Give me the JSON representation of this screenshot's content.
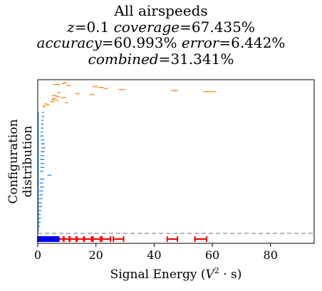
{
  "chart_data": {
    "type": "scatter",
    "title": "All airspeeds",
    "subtitle_lines": [
      [
        {
          "t": "z",
          "i": true
        },
        {
          "t": "=0.1 ",
          "i": false
        },
        {
          "t": "coverage",
          "i": true
        },
        {
          "t": "=67.435%",
          "i": false
        }
      ],
      [
        {
          "t": "accuracy",
          "i": true
        },
        {
          "t": "=60.993% ",
          "i": false
        },
        {
          "t": "error",
          "i": true
        },
        {
          "t": "=6.442%",
          "i": false
        }
      ],
      [
        {
          "t": "combined",
          "i": true
        },
        {
          "t": "=31.341%",
          "i": false
        }
      ]
    ],
    "xlabel_main": "Signal Energy (",
    "xlabel_sym": "V",
    "xlabel_sup": "2",
    "xlabel_tail": " · s)",
    "ylabel_lines": [
      "Configuration",
      "distribution"
    ],
    "xlim": [
      0,
      95
    ],
    "xticks": [
      0,
      20,
      40,
      60,
      80
    ],
    "xtick_labels": [
      "0",
      "20",
      "40",
      "60",
      "80"
    ],
    "grid": false,
    "threshold_line": {
      "style": "dashed",
      "color": "#a0a0a0"
    },
    "colors": {
      "high": "#ff9933",
      "low": "#4499ee",
      "marker": "#0000ff",
      "interval": "#ff0000"
    },
    "distribution_orange": [
      [
        9.0,
        1
      ],
      [
        8.5,
        0.6
      ],
      [
        5.5,
        2
      ],
      [
        10,
        1.2
      ],
      [
        19,
        1.5
      ],
      [
        21,
        1.6
      ],
      [
        23,
        1.0
      ],
      [
        28,
        2
      ],
      [
        46,
        2
      ],
      [
        57,
        4
      ],
      [
        7.0,
        0.7
      ],
      [
        13,
        1.2
      ],
      [
        18,
        1.4
      ],
      [
        5.0,
        1.4
      ],
      [
        6.5,
        0.9
      ],
      [
        8.0,
        1.5
      ],
      [
        5.2,
        1.0
      ],
      [
        4.8,
        0.8
      ],
      [
        6.0,
        1.0
      ],
      [
        4.5,
        1.0
      ],
      [
        9.5,
        0.8
      ],
      [
        2.5,
        0.5
      ],
      [
        3.0,
        0.8
      ],
      [
        2.0,
        0.4
      ],
      [
        1.8,
        0.6
      ]
    ],
    "distribution_blue": [
      [
        1.6,
        0.4
      ],
      [
        1.5,
        0.6
      ],
      [
        1.4,
        0.5
      ],
      [
        1.3,
        0.6
      ],
      [
        1.2,
        0.7
      ],
      [
        1.1,
        0.5
      ],
      [
        1.0,
        0.8
      ],
      [
        1.2,
        0.9
      ],
      [
        1.3,
        1.0
      ],
      [
        1.4,
        1.1
      ],
      [
        1.1,
        1.2
      ],
      [
        1.0,
        1.0
      ],
      [
        0.9,
        1.3
      ],
      [
        1.1,
        1.0
      ],
      [
        1.0,
        1.1
      ],
      [
        0.9,
        0.9
      ],
      [
        3.5,
        1.0
      ],
      [
        0.9,
        1.2
      ],
      [
        0.8,
        0.9
      ],
      [
        0.9,
        1.1
      ],
      [
        0.7,
        1.0
      ],
      [
        0.8,
        0.8
      ],
      [
        0.6,
        0.9
      ],
      [
        0.5,
        0.7
      ],
      [
        0.6,
        0.8
      ],
      [
        0.5,
        0.6
      ],
      [
        0.4,
        0.5
      ],
      [
        0.4,
        0.6
      ],
      [
        0.3,
        0.5
      ],
      [
        0.3,
        0.4
      ]
    ],
    "markers_blue": [
      0.5,
      0.9,
      1.3,
      1.7,
      2.1,
      2.5,
      2.9,
      3.3,
      3.7,
      4.2,
      4.7,
      5.2,
      5.8,
      6.4,
      7.0
    ],
    "intervals_red": [
      [
        0,
        1.2
      ],
      [
        1.5,
        2.8
      ],
      [
        3.0,
        4.2
      ],
      [
        4.5,
        5.6
      ],
      [
        5.8,
        7.0
      ],
      [
        7.2,
        8.8
      ],
      [
        9.0,
        10.8
      ],
      [
        11.0,
        13.2
      ],
      [
        13.5,
        15.8
      ],
      [
        16.0,
        18.5
      ],
      [
        19.0,
        21.5
      ],
      [
        22.0,
        25.0
      ],
      [
        26.0,
        29.5
      ],
      [
        44.5,
        48.0
      ],
      [
        54.0,
        58.0
      ]
    ]
  }
}
